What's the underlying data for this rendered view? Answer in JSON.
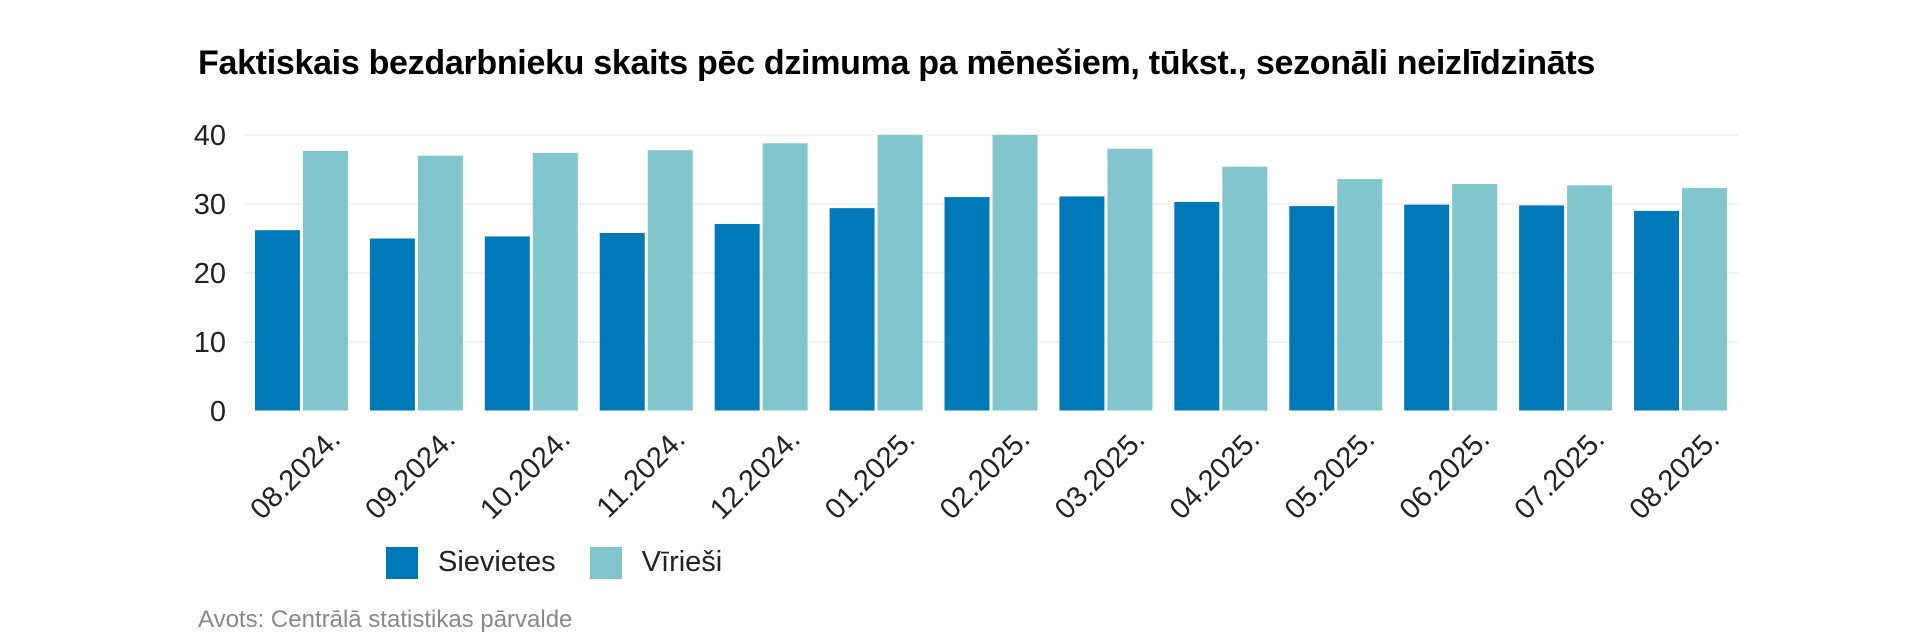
{
  "title": "Faktiskais bezdarbnieku skaits pēc dzimuma pa mēnešiem, tūkst., sezonāli neizlīdzināts",
  "source": "Avots: Centrālā statistikas pārvalde",
  "colors": {
    "series1": "#0079b8",
    "series2": "#80c6cc",
    "grid": "#e6e6e6",
    "text": "#222222"
  },
  "chart_data": {
    "type": "bar",
    "title": "Faktiskais bezdarbnieku skaits pēc dzimuma pa mēnešiem, tūkst., sezonāli neizlīdzināts",
    "xlabel": "",
    "ylabel": "",
    "ylim": [
      0,
      40
    ],
    "yticks": [
      0,
      10,
      20,
      30,
      40
    ],
    "grid": true,
    "legend": "bottom-left",
    "categories": [
      "08.2024.",
      "09.2024.",
      "10.2024.",
      "11.2024.",
      "12.2024.",
      "01.2025.",
      "02.2025.",
      "03.2025.",
      "04.2025.",
      "05.2025.",
      "06.2025.",
      "07.2025.",
      "08.2025."
    ],
    "series": [
      {
        "name": "Sievietes",
        "values": [
          26.2,
          25.0,
          25.3,
          25.8,
          27.1,
          29.4,
          31.0,
          31.1,
          30.3,
          29.7,
          29.9,
          29.8,
          29.0
        ]
      },
      {
        "name": "Vīrieši",
        "values": [
          37.7,
          37.0,
          37.4,
          37.8,
          38.8,
          40.0,
          40.0,
          38.0,
          35.4,
          33.6,
          32.9,
          32.7,
          32.3
        ]
      }
    ]
  }
}
